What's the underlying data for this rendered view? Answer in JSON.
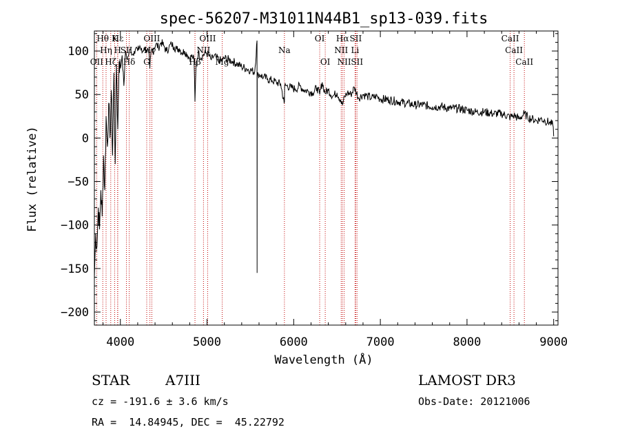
{
  "chart_data": {
    "type": "line",
    "title": "spec-56207-M31011N44B1_sp13-039.fits",
    "xlabel": "Wavelength (Å)",
    "ylabel": "Flux (relative)",
    "xlim": [
      3700,
      9050
    ],
    "ylim": [
      -215,
      123
    ],
    "x_ticks": [
      4000,
      5000,
      6000,
      7000,
      8000,
      9000
    ],
    "y_ticks": [
      -200,
      -150,
      -100,
      -50,
      0,
      50,
      100
    ],
    "grid": false,
    "series": [
      {
        "name": "spectrum",
        "x": [
          3700,
          3715,
          3730,
          3745,
          3760,
          3775,
          3790,
          3805,
          3820,
          3835,
          3850,
          3865,
          3880,
          3895,
          3910,
          3925,
          3940,
          3955,
          3970,
          3985,
          4000,
          4020,
          4040,
          4060,
          4080,
          4100,
          4120,
          4140,
          4160,
          4180,
          4200,
          4225,
          4250,
          4275,
          4300,
          4325,
          4340,
          4355,
          4380,
          4410,
          4440,
          4470,
          4500,
          4530,
          4560,
          4590,
          4620,
          4650,
          4680,
          4710,
          4740,
          4770,
          4800,
          4830,
          4850,
          4861,
          4875,
          4900,
          4930,
          4960,
          4990,
          5020,
          5050,
          5080,
          5110,
          5140,
          5170,
          5200,
          5250,
          5300,
          5350,
          5400,
          5450,
          5500,
          5550,
          5577,
          5578,
          5579,
          5590,
          5620,
          5650,
          5700,
          5750,
          5800,
          5850,
          5890,
          5893,
          5896,
          5920,
          5970,
          6020,
          6070,
          6120,
          6170,
          6220,
          6270,
          6300,
          6330,
          6360,
          6400,
          6450,
          6500,
          6540,
          6563,
          6590,
          6620,
          6660,
          6700,
          6750,
          6800,
          6850,
          6900,
          6950,
          7000,
          7100,
          7200,
          7300,
          7400,
          7500,
          7600,
          7700,
          7800,
          7900,
          8000,
          8100,
          8200,
          8300,
          8400,
          8500,
          8542,
          8600,
          8662,
          8700,
          8750,
          8800,
          8850,
          8900,
          8950,
          8990,
          9000
        ],
        "values": [
          -160,
          -110,
          -125,
          -80,
          -105,
          -60,
          -90,
          -20,
          -60,
          25,
          -10,
          40,
          0,
          55,
          -20,
          75,
          -30,
          85,
          10,
          88,
          80,
          95,
          60,
          100,
          90,
          98,
          102,
          96,
          100,
          104,
          100,
          106,
          98,
          104,
          101,
          99,
          80,
          100,
          103,
          108,
          104,
          110,
          106,
          100,
          104,
          108,
          105,
          102,
          103,
          98,
          100,
          96,
          92,
          94,
          90,
          42,
          88,
          98,
          92,
          96,
          98,
          95,
          90,
          94,
          92,
          90,
          88,
          92,
          90,
          88,
          85,
          82,
          80,
          78,
          76,
          112,
          -155,
          70,
          74,
          72,
          70,
          68,
          66,
          64,
          62,
          40,
          42,
          60,
          60,
          58,
          56,
          60,
          55,
          54,
          52,
          58,
          50,
          64,
          52,
          55,
          48,
          52,
          44,
          38,
          48,
          52,
          50,
          58,
          46,
          50,
          48,
          46,
          48,
          45,
          44,
          42,
          40,
          38,
          38,
          36,
          36,
          34,
          34,
          32,
          30,
          30,
          28,
          28,
          24,
          26,
          22,
          28,
          24,
          22,
          20,
          22,
          20,
          18,
          15,
          2
        ]
      }
    ],
    "line_markers": [
      {
        "label": "Hθ",
        "x": 3797,
        "row": 1
      },
      {
        "label": "OII",
        "x": 3727,
        "row": 3
      },
      {
        "label": "Hη",
        "x": 3835,
        "row": 2
      },
      {
        "label": "Hζ",
        "x": 3889,
        "row": 3
      },
      {
        "label": "K",
        "x": 3934,
        "row": 1
      },
      {
        "label": "H",
        "x": 3968,
        "row": 2
      },
      {
        "label": "Hε",
        "x": 3970,
        "row": 1
      },
      {
        "label": "SII",
        "x": 4070,
        "row": 2
      },
      {
        "label": "Hδ",
        "x": 4102,
        "row": 3
      },
      {
        "label": "G",
        "x": 4304,
        "row": 3
      },
      {
        "label": "OIII",
        "x": 4363,
        "row": 1
      },
      {
        "label": "Hγ",
        "x": 4341,
        "row": 2
      },
      {
        "label": "Hβ",
        "x": 4861,
        "row": 3
      },
      {
        "label": "OIII",
        "x": 5007,
        "row": 1
      },
      {
        "label": "NII",
        "x": 4959,
        "row": 2
      },
      {
        "label": "Mg",
        "x": 5175,
        "row": 3
      },
      {
        "label": "Na",
        "x": 5893,
        "row": 2
      },
      {
        "label": "OI",
        "x": 6300,
        "row": 1
      },
      {
        "label": "OI",
        "x": 6364,
        "row": 3
      },
      {
        "label": "Hα",
        "x": 6563,
        "row": 1
      },
      {
        "label": "NII",
        "x": 6548,
        "row": 2
      },
      {
        "label": "NII",
        "x": 6583,
        "row": 3
      },
      {
        "label": "SII",
        "x": 6716,
        "row": 1
      },
      {
        "label": "Li",
        "x": 6708,
        "row": 2
      },
      {
        "label": "SII",
        "x": 6731,
        "row": 3
      },
      {
        "label": "CaII",
        "x": 8498,
        "row": 1
      },
      {
        "label": "CaII",
        "x": 8542,
        "row": 2
      },
      {
        "label": "CaII",
        "x": 8662,
        "row": 3
      }
    ]
  },
  "info": {
    "object_type": "STAR",
    "spectral_class": "A7III",
    "survey": "LAMOST DR3",
    "redshift_line": "cz = -191.6 ± 3.6 km/s",
    "obs_date_line": "Obs-Date: 20121006",
    "coords_line": "RA =  14.84945, DEC =  45.22792"
  },
  "colors": {
    "spectrum": "#000000",
    "marker": "#c00000",
    "axes": "#000000"
  }
}
